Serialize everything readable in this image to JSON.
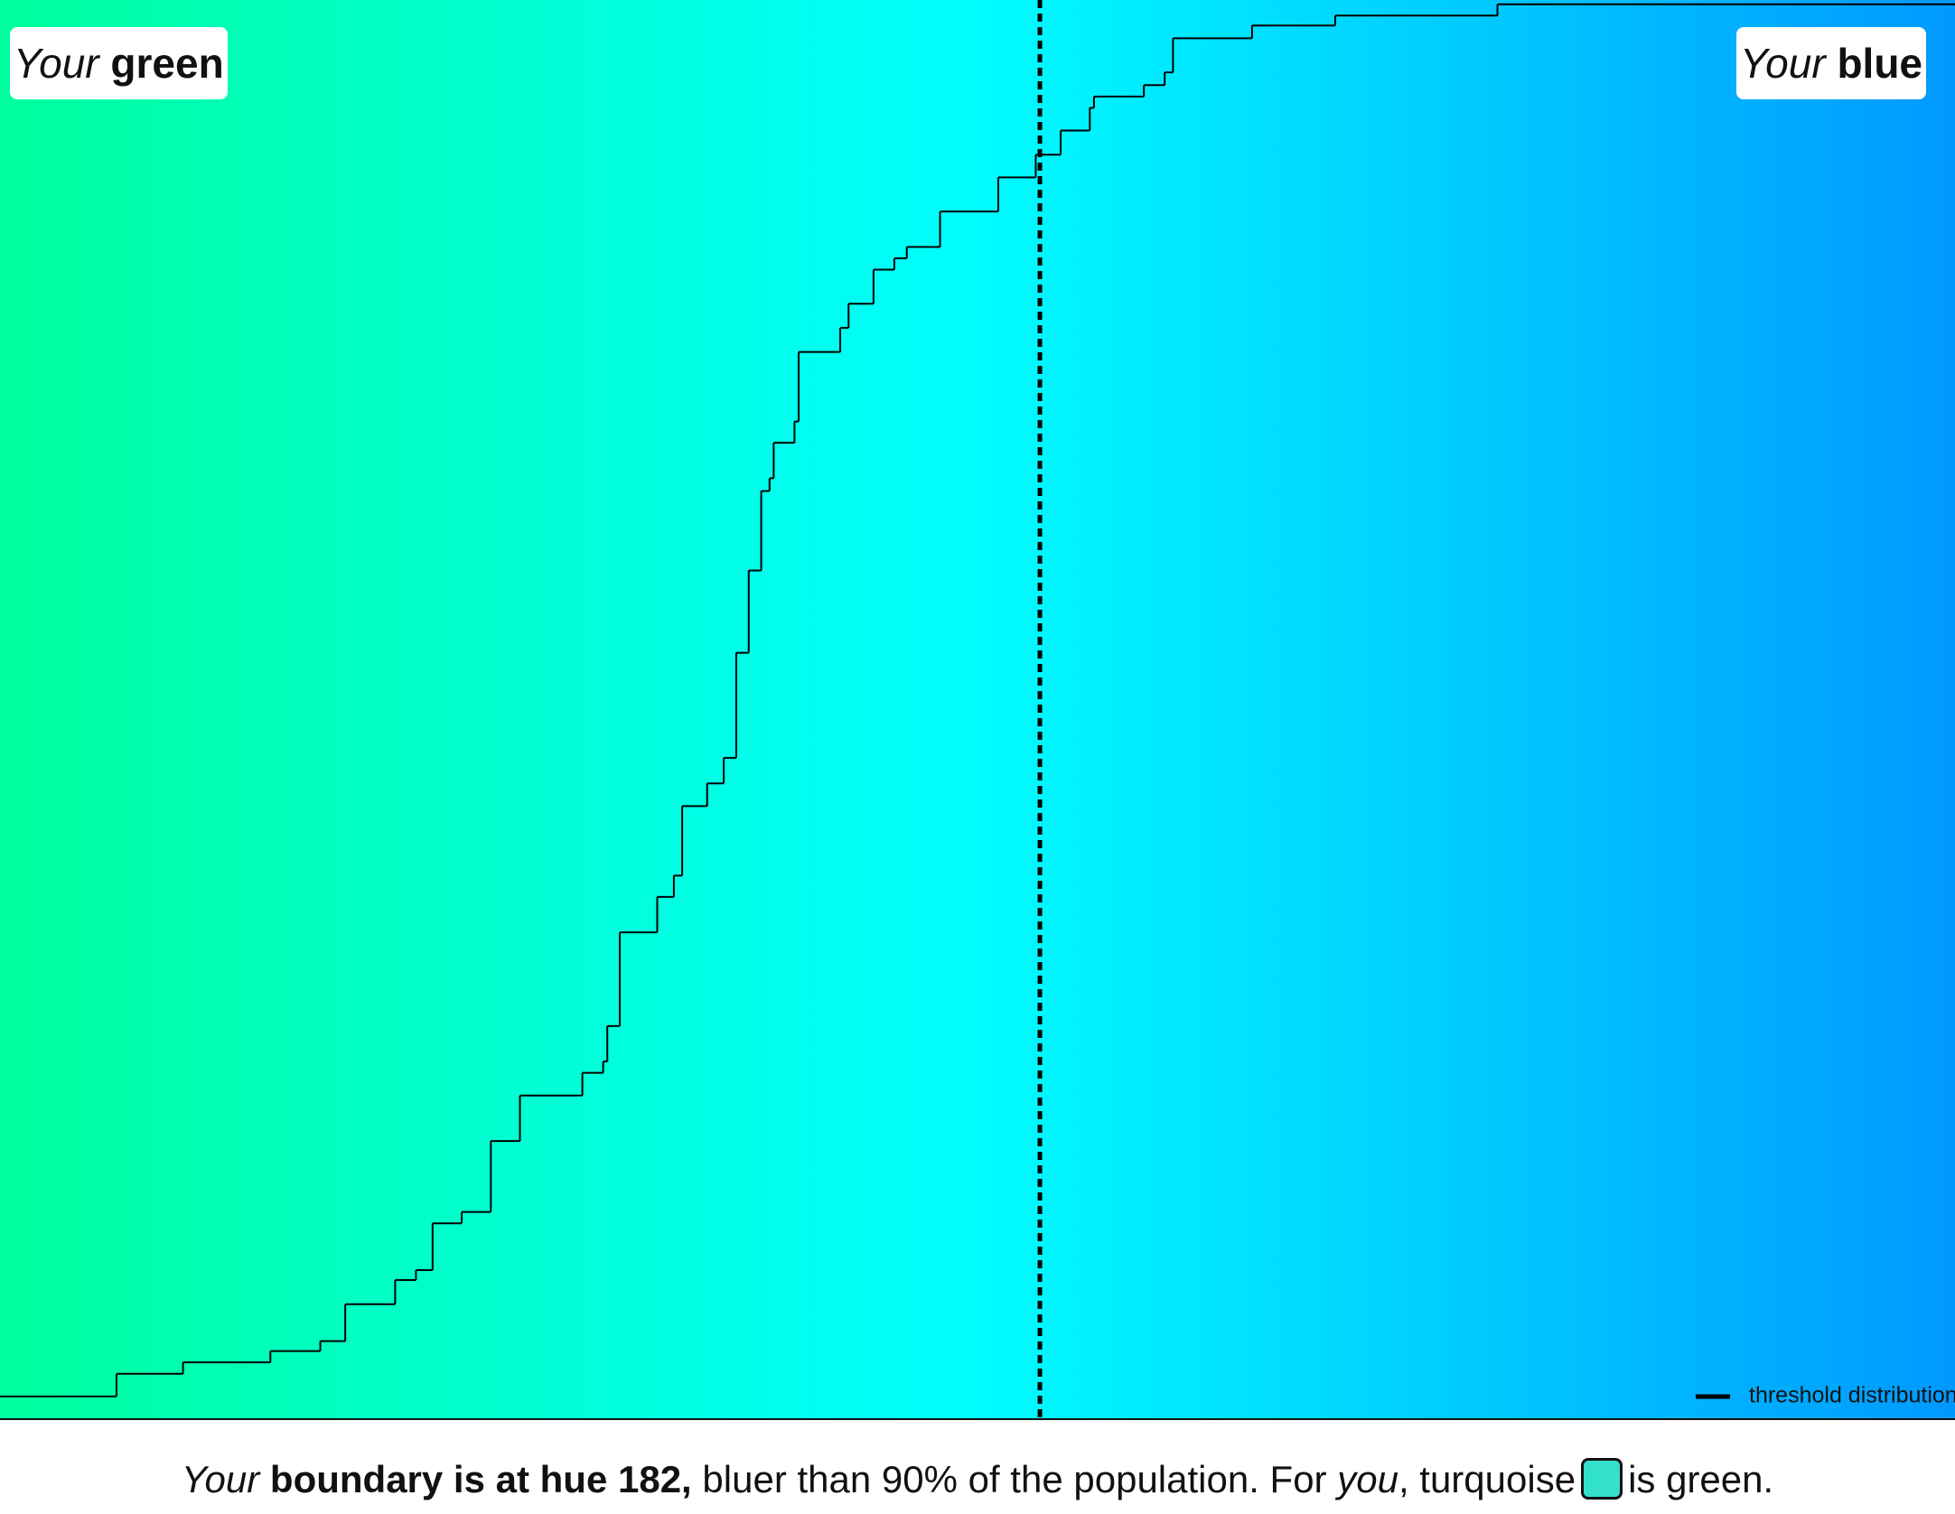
{
  "chart_data": {
    "type": "step",
    "xlim": [
      157,
      204
    ],
    "ylim": [
      0,
      1
    ],
    "boundary": 182,
    "legend": "bottom-right",
    "series": [
      {
        "name": "threshold distribution",
        "color": "#000000",
        "x": [
          157.0,
          159.8,
          161.4,
          163.5,
          164.7,
          165.3,
          166.5,
          167.0,
          167.4,
          168.1,
          168.8,
          169.5,
          171.0,
          171.5,
          171.6,
          171.9,
          172.8,
          173.2,
          173.4,
          174.0,
          174.4,
          174.7,
          175.0,
          175.3,
          175.5,
          175.6,
          176.1,
          176.2,
          177.2,
          177.4,
          178.0,
          178.5,
          178.8,
          179.6,
          181.0,
          181.9,
          182.5,
          183.2,
          183.3,
          184.5,
          185.0,
          185.2,
          187.1,
          189.1,
          193.0
        ],
        "values": [
          0.016,
          0.032,
          0.04,
          0.048,
          0.055,
          0.081,
          0.098,
          0.105,
          0.138,
          0.146,
          0.196,
          0.228,
          0.244,
          0.252,
          0.277,
          0.343,
          0.368,
          0.383,
          0.432,
          0.448,
          0.466,
          0.54,
          0.598,
          0.654,
          0.663,
          0.688,
          0.703,
          0.752,
          0.769,
          0.786,
          0.81,
          0.818,
          0.826,
          0.851,
          0.875,
          0.891,
          0.908,
          0.924,
          0.932,
          0.94,
          0.949,
          0.973,
          0.982,
          0.989,
          0.997
        ]
      }
    ]
  },
  "labels": {
    "left": {
      "prefix": "Your",
      "word": "green"
    },
    "right": {
      "prefix": "Your",
      "word": "blue"
    }
  },
  "caption": {
    "parts": [
      "Your",
      "boundary is at hue 182,",
      "bluer than 90% of the population. For",
      "you",
      ", turquoise",
      "is green."
    ],
    "swatch_color": "#33e0cc"
  }
}
